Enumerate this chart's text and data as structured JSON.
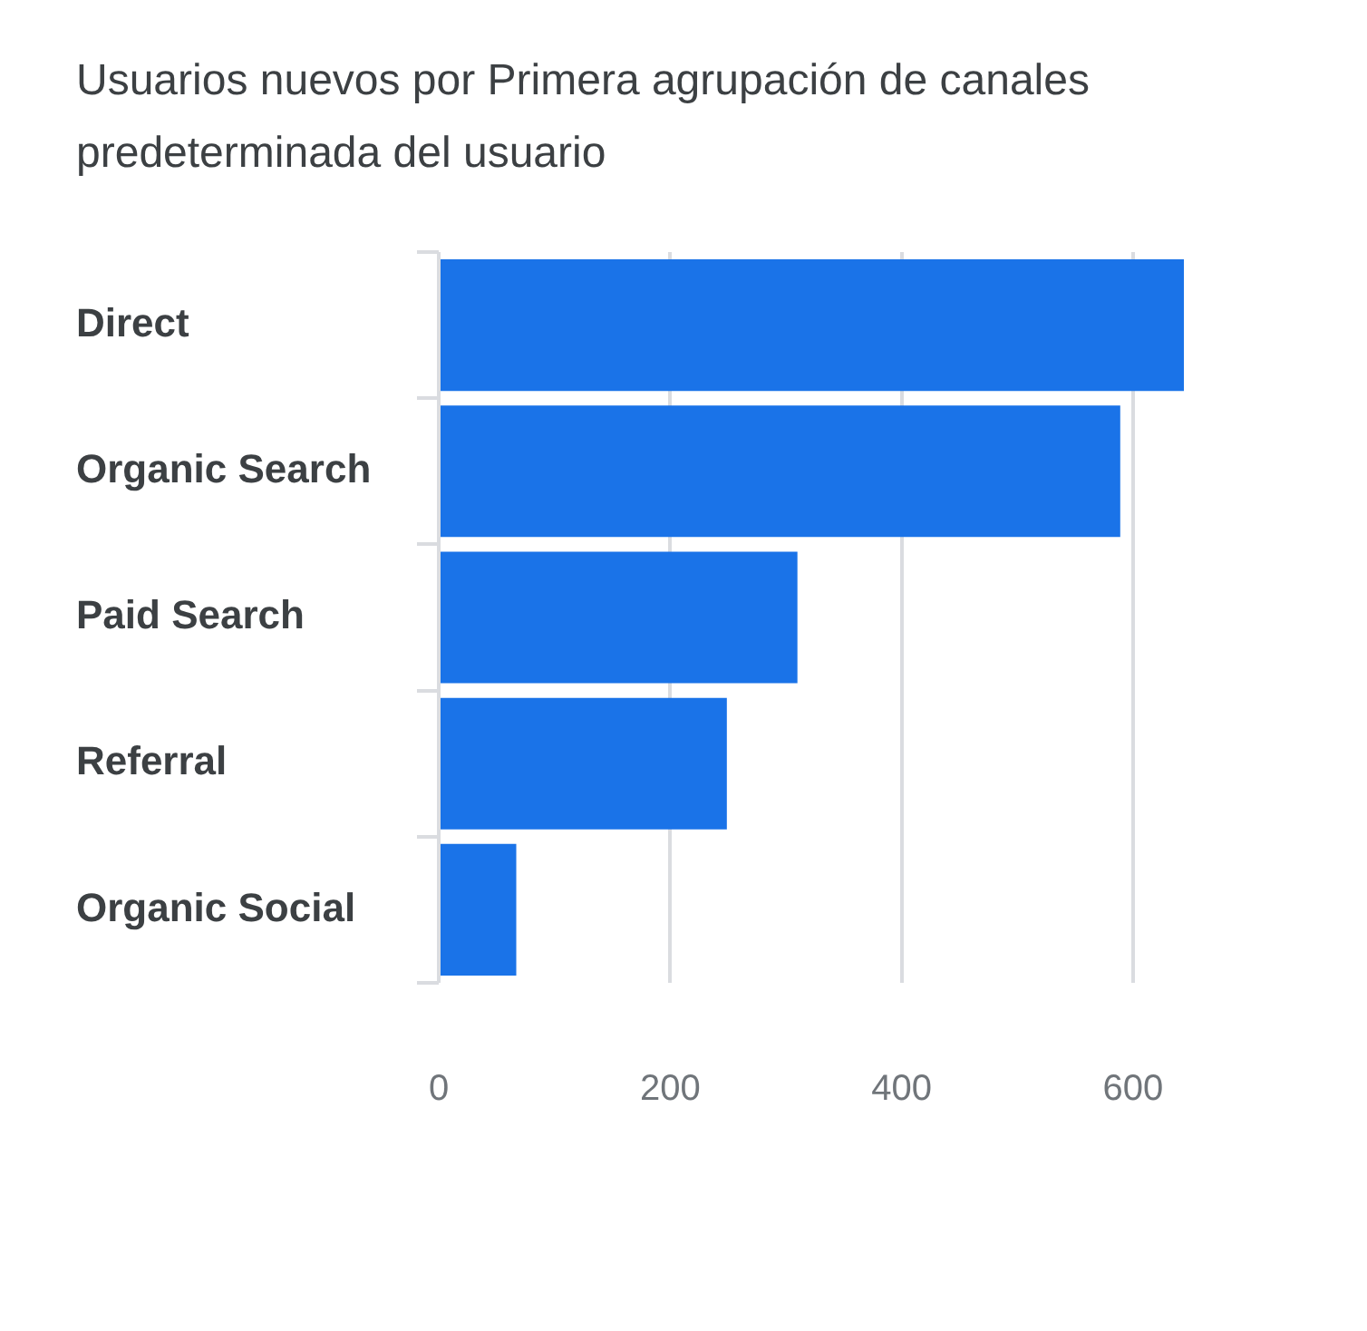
{
  "chart_data": {
    "type": "bar",
    "orientation": "horizontal",
    "title": "Usuarios nuevos por Primera agrupación de canales predeterminada del usuario",
    "categories": [
      "Direct",
      "Organic Search",
      "Paid Search",
      "Referral",
      "Organic Social"
    ],
    "values": [
      644,
      589,
      310,
      249,
      67
    ],
    "color": "#1a73e8",
    "xlim": [
      0,
      644
    ],
    "xticks": [
      0,
      200,
      400,
      600
    ],
    "grid": "x",
    "legend": false
  }
}
